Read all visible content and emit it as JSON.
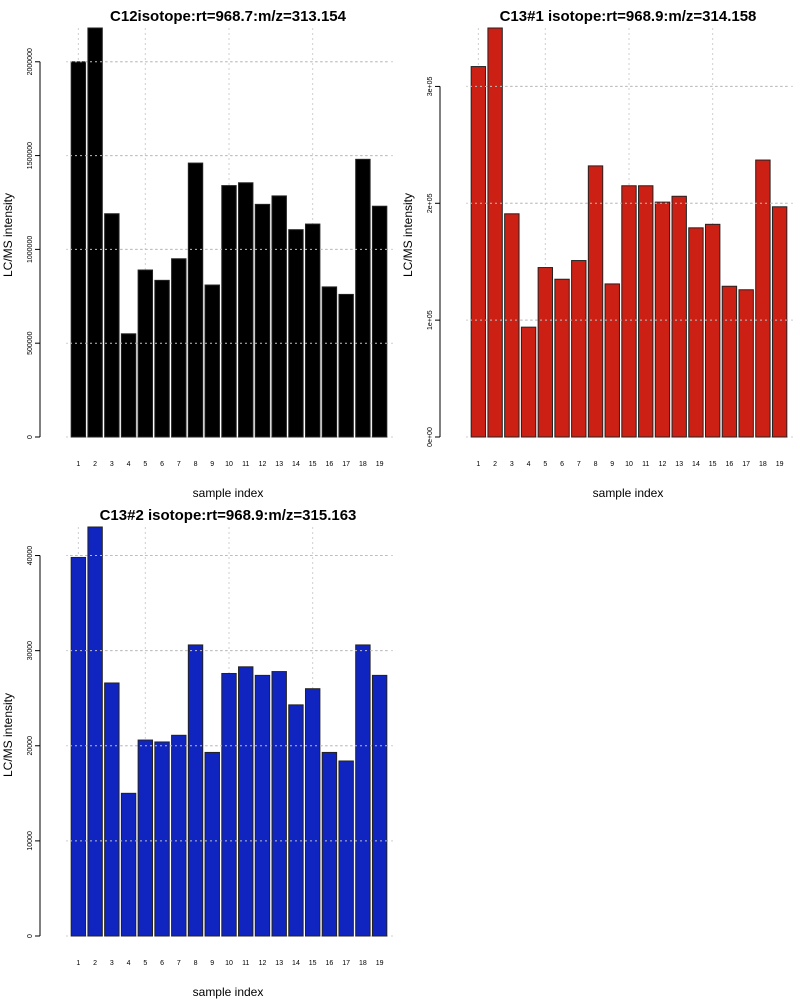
{
  "chart_data": [
    {
      "type": "bar",
      "title": "C12isotope:rt=968.7:m/z=313.154",
      "xlabel": "sample index",
      "ylabel": "LC/MS intensity",
      "color": "#000000",
      "categories": [
        "1",
        "2",
        "3",
        "4",
        "5",
        "6",
        "7",
        "8",
        "9",
        "10",
        "11",
        "12",
        "13",
        "14",
        "15",
        "16",
        "17",
        "18",
        "19"
      ],
      "values": [
        2000000,
        2180000,
        1190000,
        550000,
        890000,
        835000,
        950000,
        1460000,
        810000,
        1340000,
        1355000,
        1240000,
        1285000,
        1105000,
        1135000,
        800000,
        760000,
        1480000,
        1230000
      ],
      "ylim": [
        0,
        2180000
      ],
      "yticks": [
        0,
        500000,
        1000000,
        1500000,
        2000000
      ],
      "ytick_labels": [
        "0",
        "500000",
        "1000000",
        "1500000",
        "2000000"
      ],
      "grid": true
    },
    {
      "type": "bar",
      "title": "C13#1 isotope:rt=968.9:m/z=314.158",
      "xlabel": "sample index",
      "ylabel": "LC/MS intensity",
      "color": "#cc2014",
      "categories": [
        "1",
        "2",
        "3",
        "4",
        "5",
        "6",
        "7",
        "8",
        "9",
        "10",
        "11",
        "12",
        "13",
        "14",
        "15",
        "16",
        "17",
        "18",
        "19"
      ],
      "values": [
        317000,
        350000,
        191000,
        94000,
        145000,
        135000,
        151000,
        232000,
        131000,
        215000,
        215000,
        201000,
        206000,
        179000,
        182000,
        129000,
        126000,
        237000,
        197000
      ],
      "ylim": [
        0,
        350000
      ],
      "yticks": [
        0,
        100000,
        200000,
        300000
      ],
      "ytick_labels": [
        "0e+00",
        "1e+05",
        "2e+05",
        "3e+05"
      ],
      "grid": true
    },
    {
      "type": "bar",
      "title": "C13#2 isotope:rt=968.9:m/z=315.163",
      "xlabel": "sample index",
      "ylabel": "LC/MS intensity",
      "color": "#1025c0",
      "categories": [
        "1",
        "2",
        "3",
        "4",
        "5",
        "6",
        "7",
        "8",
        "9",
        "10",
        "11",
        "12",
        "13",
        "14",
        "15",
        "16",
        "17",
        "18",
        "19"
      ],
      "values": [
        39800,
        43000,
        26600,
        15000,
        20600,
        20400,
        21100,
        30600,
        19300,
        27600,
        28300,
        27400,
        27800,
        24300,
        26000,
        19300,
        18400,
        30600,
        27400
      ],
      "ylim": [
        0,
        43000
      ],
      "yticks": [
        0,
        10000,
        20000,
        30000,
        40000
      ],
      "ytick_labels": [
        "0",
        "10000",
        "20000",
        "30000",
        "40000"
      ],
      "grid": true
    }
  ]
}
